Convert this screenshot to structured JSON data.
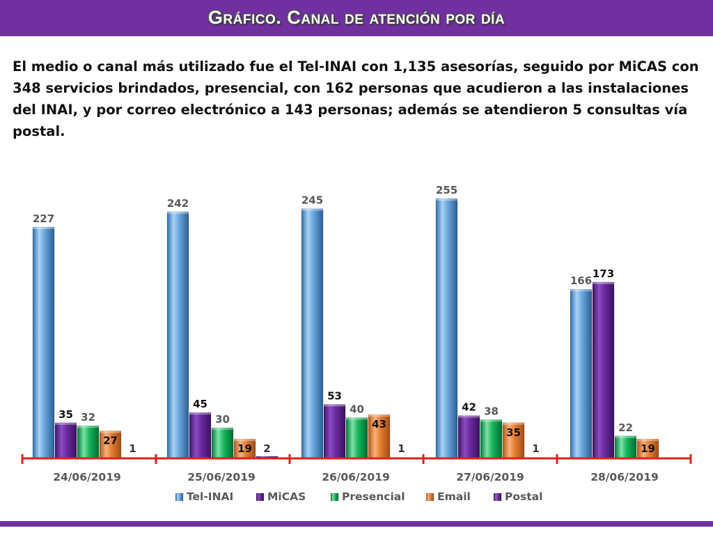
{
  "header": {
    "title": "Gráfico. Canal de atención por día"
  },
  "intro": {
    "text": "El medio o canal más utilizado fue el Tel-INAI con 1,135 asesorías, seguido por MiCAS con 348 servicios brindados, presencial, con 162 personas que acudieron a las instalaciones del INAI, y por correo electrónico a 143 personas; además se atendieron 5 consultas vía postal."
  },
  "colors": {
    "header": "#7030a0",
    "tel_inai": "#5b9bd5",
    "micas": "#7030a0",
    "presencial": "#00b050",
    "email": "#ed7d31",
    "axis": "#e3201b"
  },
  "chart_data": {
    "type": "bar",
    "categories": [
      "24/06/2019",
      "25/06/2019",
      "26/06/2019",
      "27/06/2019",
      "28/06/2019"
    ],
    "series": [
      {
        "name": "Tel-INAI",
        "values": [
          227,
          242,
          245,
          255,
          166
        ]
      },
      {
        "name": "MiCAS",
        "values": [
          35,
          45,
          53,
          42,
          173
        ]
      },
      {
        "name": "Presencial",
        "values": [
          32,
          30,
          40,
          38,
          22
        ]
      },
      {
        "name": "Email",
        "values": [
          27,
          19,
          43,
          35,
          19
        ]
      },
      {
        "name": "Postal",
        "values": [
          1,
          2,
          1,
          1,
          null
        ]
      }
    ],
    "ylim": [
      0,
      260
    ],
    "grid": false,
    "legend": "bottom"
  }
}
